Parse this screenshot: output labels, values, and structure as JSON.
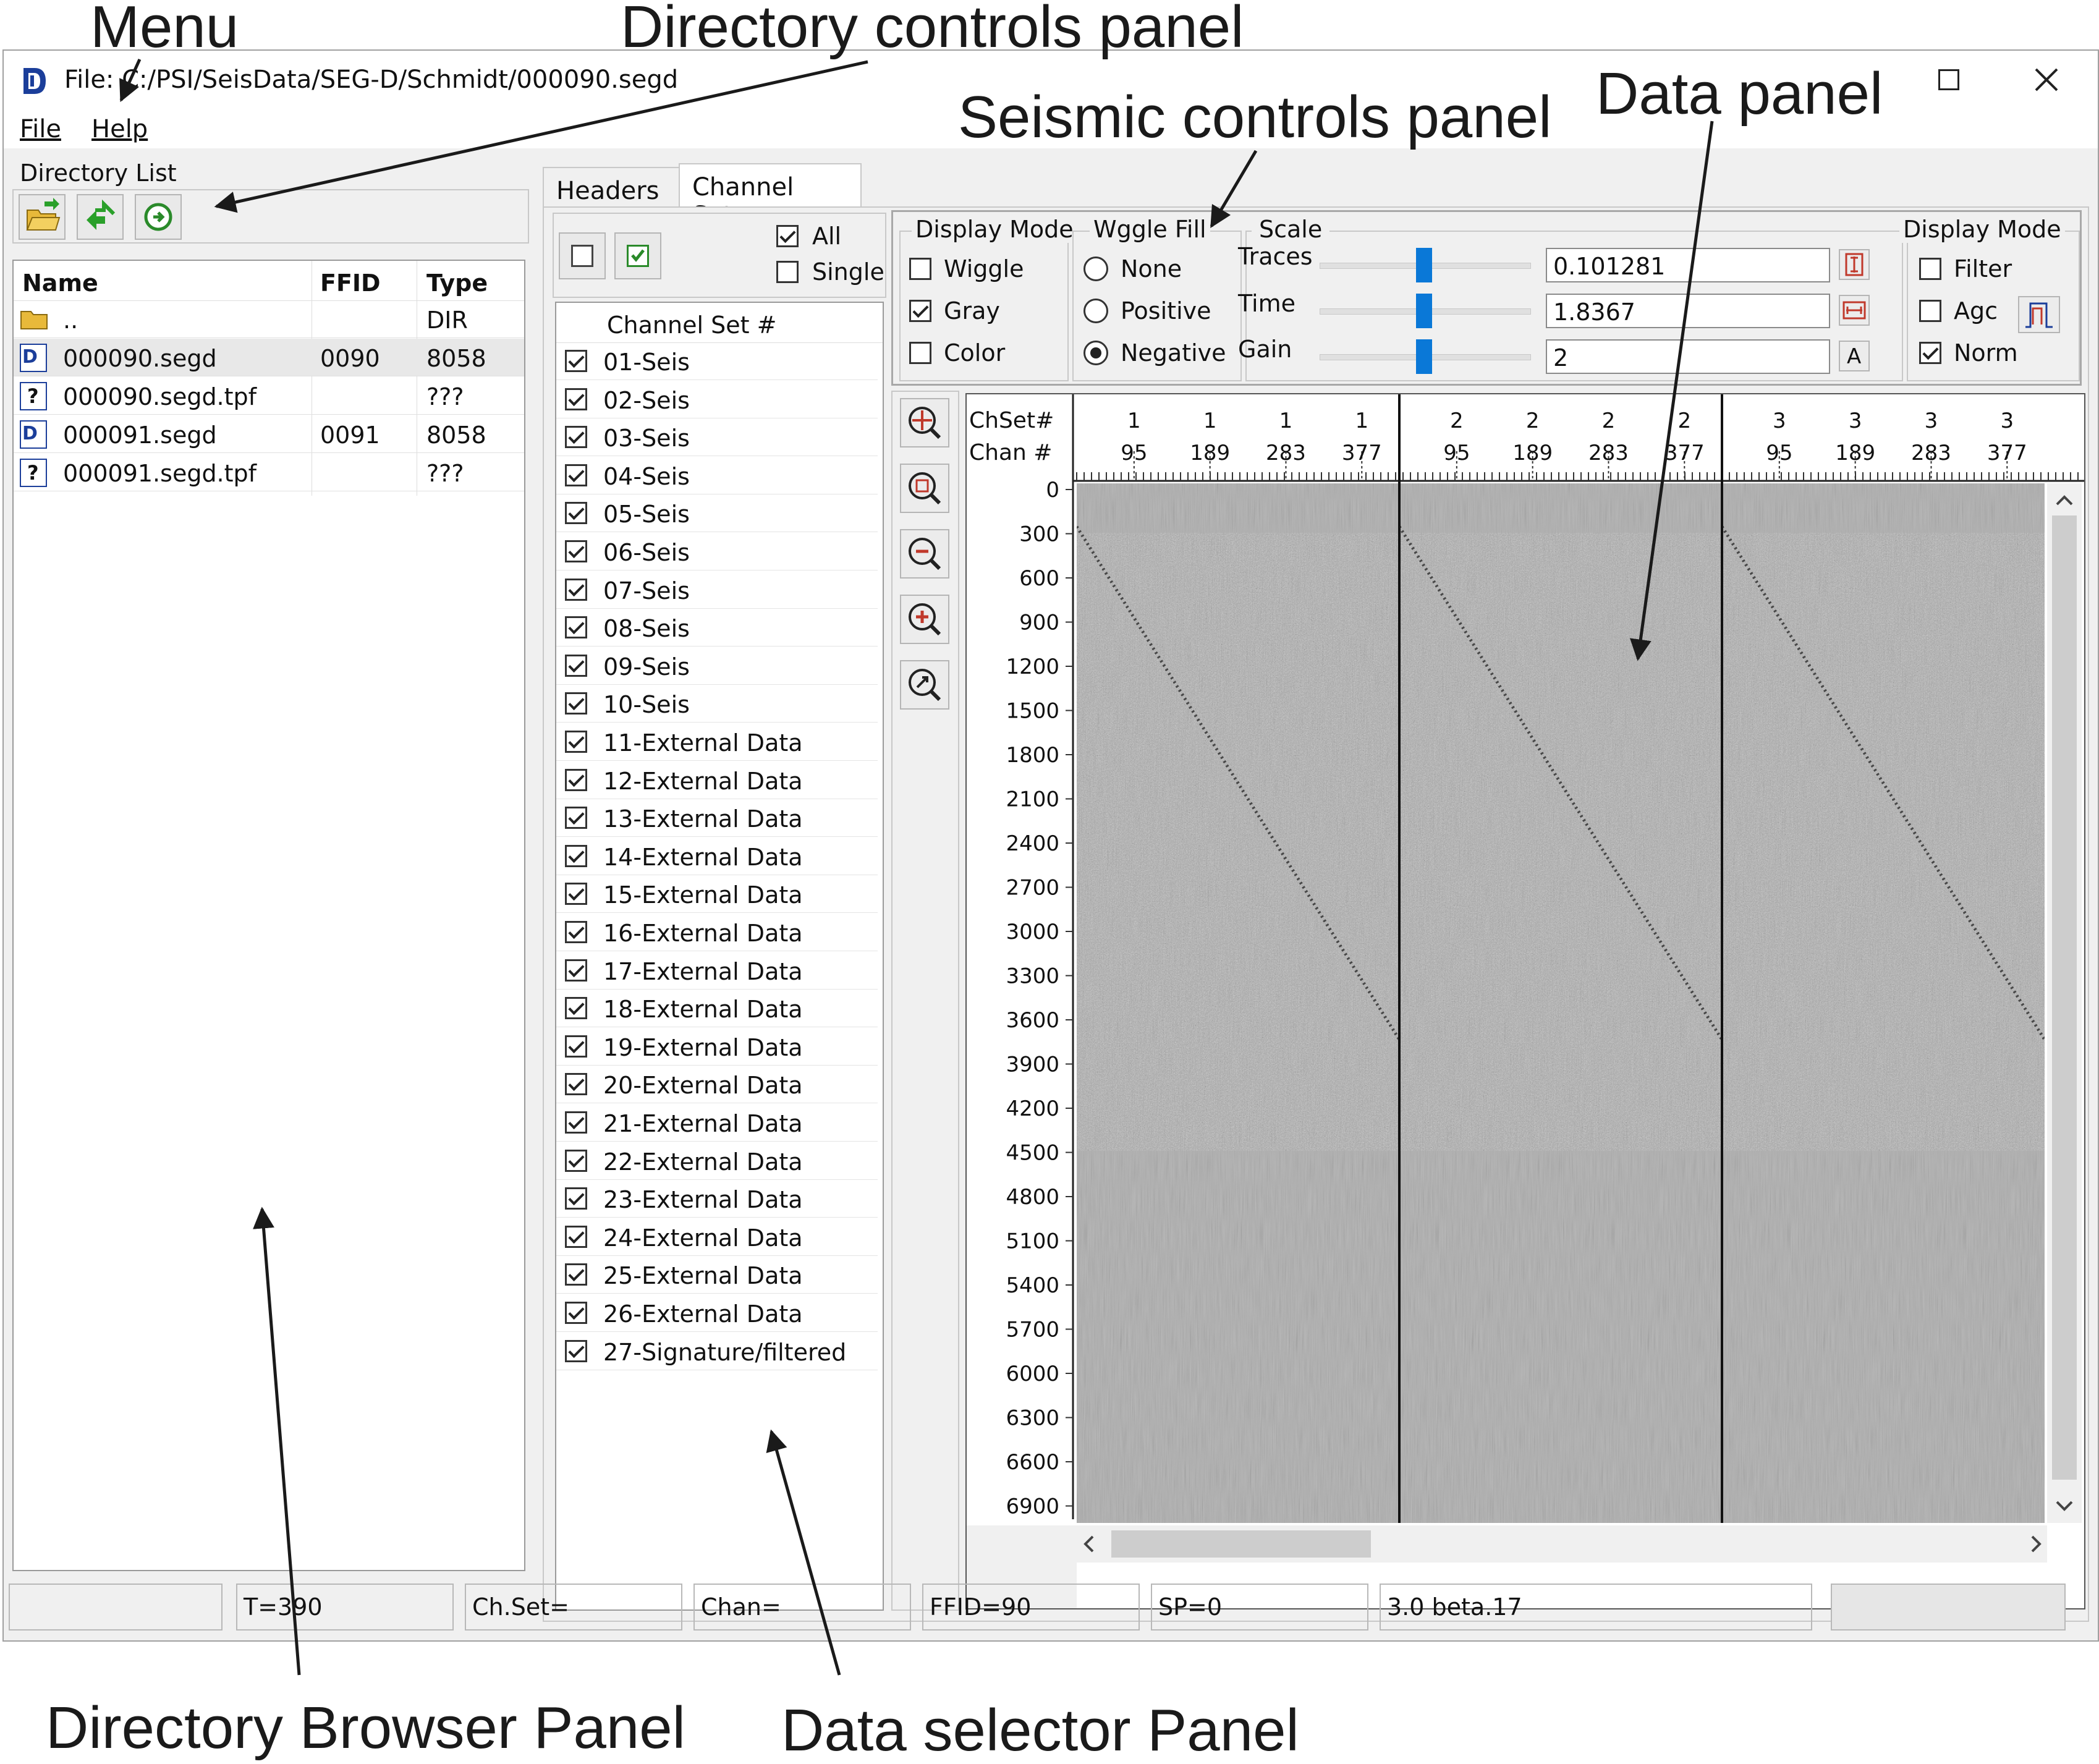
{
  "annotations": {
    "menu": "Menu",
    "directory_controls": "Directory controls panel",
    "seismic_controls": "Seismic controls panel",
    "data_panel": "Data panel",
    "directory_browser": "Directory Browser Panel",
    "data_selector": "Data selector Panel"
  },
  "window": {
    "title": "File: C:/PSI/SeisData/SEG-D/Schmidt/000090.segd",
    "maximize_icon": "maximize-icon",
    "close_icon": "close-icon"
  },
  "menu": {
    "file": "File",
    "help": "Help"
  },
  "directory": {
    "group_label": "Directory List",
    "columns": [
      "Name",
      "FFID",
      "Type"
    ],
    "rows": [
      {
        "icon": "folder-icon",
        "name": "..",
        "ffid": "",
        "type": "DIR"
      },
      {
        "icon": "segd-file-icon",
        "name": "000090.segd",
        "ffid": "0090",
        "type": "8058"
      },
      {
        "icon": "unknown-file-icon",
        "name": "000090.segd.tpf",
        "ffid": "",
        "type": "???"
      },
      {
        "icon": "segd-file-icon",
        "name": "000091.segd",
        "ffid": "0091",
        "type": "8058"
      },
      {
        "icon": "unknown-file-icon",
        "name": "000091.segd.tpf",
        "ffid": "",
        "type": "???"
      }
    ]
  },
  "tabs": {
    "headers": "Headers",
    "channel_sets": "Channel Sets"
  },
  "selector": {
    "all_label": "All",
    "single_label": "Single",
    "all_checked": true,
    "single_checked": false,
    "header": "Channel Set #",
    "items": [
      "01-Seis",
      "02-Seis",
      "03-Seis",
      "04-Seis",
      "05-Seis",
      "06-Seis",
      "07-Seis",
      "08-Seis",
      "09-Seis",
      "10-Seis",
      "11-External Data",
      "12-External Data",
      "13-External Data",
      "14-External Data",
      "15-External Data",
      "16-External Data",
      "17-External Data",
      "18-External Data",
      "19-External Data",
      "20-External Data",
      "21-External Data",
      "22-External Data",
      "23-External Data",
      "24-External Data",
      "25-External Data",
      "26-External Data",
      "27-Signature/filtered"
    ]
  },
  "controls": {
    "display_mode": {
      "title": "Display Mode",
      "wiggle": "Wiggle",
      "gray": "Gray",
      "color": "Color"
    },
    "wiggle_fill": {
      "title": "Wggle Fill",
      "none": "None",
      "positive": "Positive",
      "negative": "Negative",
      "selected": "Negative"
    },
    "scale": {
      "title": "Scale",
      "traces_label": "Traces",
      "traces_value": "0.101281",
      "time_label": "Time",
      "time_value": "1.8367",
      "gain_label": "Gain",
      "gain_value": "2",
      "auto_button": "A"
    },
    "display_mode2": {
      "title": "Display Mode",
      "filter": "Filter",
      "agc": "Agc",
      "norm": "Norm"
    }
  },
  "seismic": {
    "header_line1": "ChSet#",
    "header_line2": "Chan #",
    "chset_ticks": [
      "1",
      "1",
      "1",
      "1",
      "2",
      "2",
      "2",
      "2",
      "3",
      "3",
      "3",
      "3"
    ],
    "chan_ticks": [
      "95",
      "189",
      "283",
      "377",
      "95",
      "189",
      "283",
      "377",
      "95",
      "189",
      "283",
      "377"
    ],
    "time_ticks": [
      "0",
      "300",
      "600",
      "900",
      "1200",
      "1500",
      "1800",
      "2100",
      "2400",
      "2700",
      "3000",
      "3300",
      "3600",
      "3900",
      "4200",
      "4500",
      "4800",
      "5100",
      "5400",
      "5700",
      "6000",
      "6300",
      "6600",
      "6900"
    ]
  },
  "status": {
    "t": "T=390",
    "chset": "Ch.Set=",
    "chan": "Chan=",
    "ffid": "FFID=90",
    "sp": "SP=0",
    "version": "3.0 beta.17"
  }
}
